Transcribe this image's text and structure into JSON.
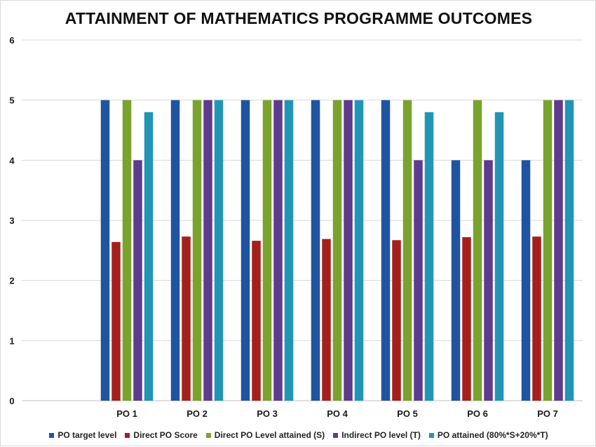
{
  "chart_data": {
    "type": "bar",
    "title": "ATTAINMENT OF MATHEMATICS PROGRAMME OUTCOMES",
    "xlabel": "",
    "ylabel": "",
    "ylim": [
      0,
      6
    ],
    "yticks": [
      "0",
      "1",
      "2",
      "3",
      "4",
      "5",
      "6"
    ],
    "grid": true,
    "legend_position": "bottom",
    "categories": [
      "",
      "PO 1",
      "PO 2",
      "PO 3",
      "PO 4",
      "PO 5",
      "PO 6",
      "PO 7"
    ],
    "series": [
      {
        "name": "PO target level",
        "color": "#1f55a0",
        "values": [
          null,
          5,
          5,
          5,
          5,
          5,
          4,
          4
        ]
      },
      {
        "name": "Direct PO Score",
        "color": "#a5201c",
        "values": [
          null,
          2.64,
          2.73,
          2.66,
          2.69,
          2.67,
          2.72,
          2.73
        ]
      },
      {
        "name": "Direct PO Level attained (S)",
        "color": "#7aa32e",
        "values": [
          null,
          5,
          5,
          5,
          5,
          5,
          5,
          5
        ]
      },
      {
        "name": "Indirect PO level (T)",
        "color": "#5e3b8c",
        "values": [
          null,
          4,
          5,
          5,
          5,
          4,
          4,
          5
        ]
      },
      {
        "name": "PO attained (80%*S+20%*T)",
        "color": "#2196b4",
        "values": [
          null,
          4.8,
          5,
          5,
          5,
          4.8,
          4.8,
          5
        ]
      }
    ]
  }
}
